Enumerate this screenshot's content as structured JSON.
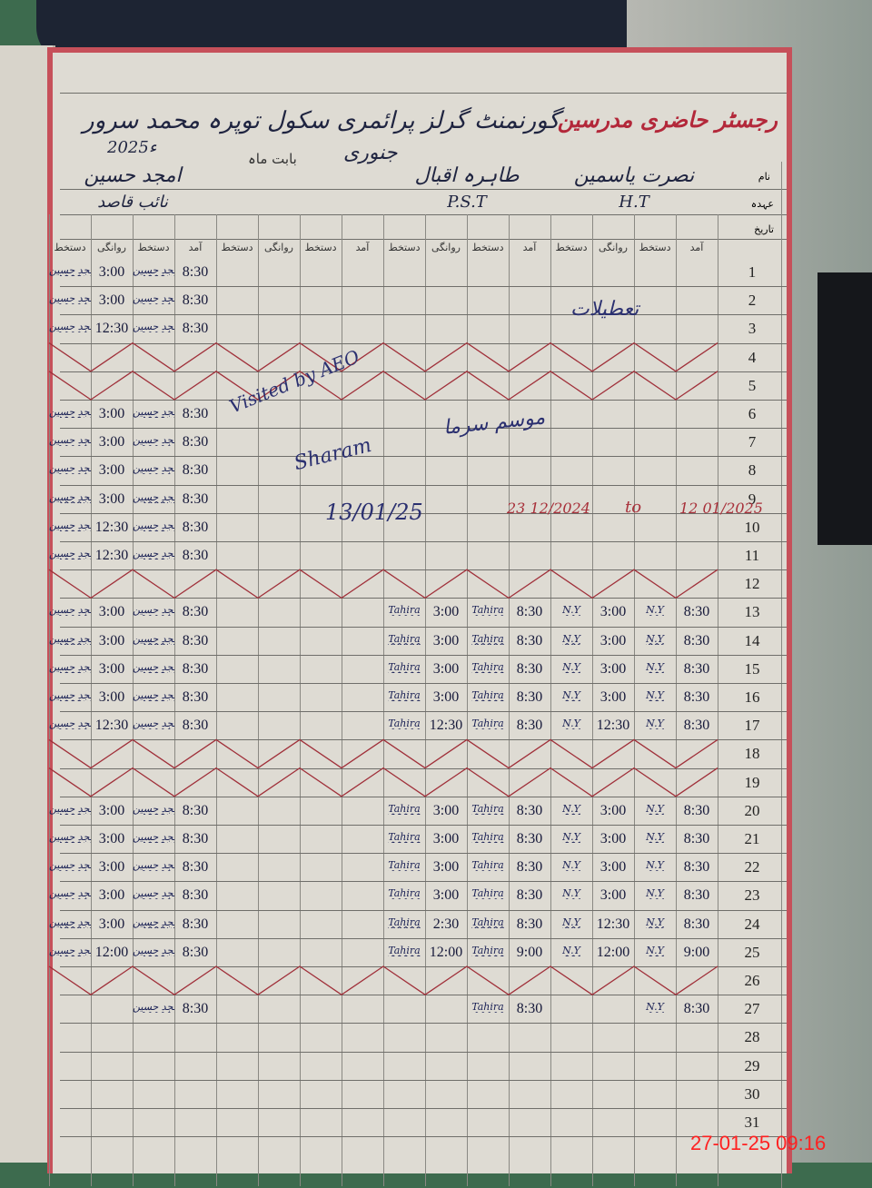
{
  "register": {
    "printed_title": "رجسٹر حاضری مدرسین",
    "school": "گورنمنٹ گرلز پرائمری سکول توپرہ محمد سرور",
    "month_label": "بابت ماہ",
    "month": "جنوری",
    "year": "2025ء",
    "row_labels": {
      "name": "نام",
      "designation": "عہدہ",
      "date": "تاریخ"
    },
    "column_headers": [
      "آمد",
      "دستخط",
      "روانگی",
      "دستخط",
      "آمد",
      "دستخط",
      "روانگی",
      "دستخط",
      "آمد",
      "دستخط",
      "روانگی",
      "دستخط",
      "آمد",
      "دستخط",
      "روانگی",
      "دستخط"
    ],
    "teachers": [
      {
        "name": "نصرت یاسمین",
        "designation": "H.T",
        "signature": "N.Y"
      },
      {
        "name": "طاہرہ اقبال",
        "designation": "P.S.T",
        "signature": "Tahira"
      },
      {
        "name": "",
        "designation": "",
        "signature": ""
      },
      {
        "name": "امجد حسین",
        "designation": "نائب قاصد",
        "signature": "امجد حسین"
      }
    ]
  },
  "rows": [
    {
      "date": "1",
      "t": [
        null,
        null,
        null,
        [
          "8:30",
          "3:00"
        ]
      ]
    },
    {
      "date": "2",
      "t": [
        null,
        null,
        null,
        [
          "8:30",
          "3:00"
        ]
      ]
    },
    {
      "date": "3",
      "t": [
        null,
        null,
        null,
        [
          "8:30",
          "12:30"
        ]
      ]
    },
    {
      "date": "4",
      "holiday": true
    },
    {
      "date": "5",
      "holiday": true
    },
    {
      "date": "6",
      "t": [
        null,
        null,
        null,
        [
          "8:30",
          "3:00"
        ]
      ]
    },
    {
      "date": "7",
      "t": [
        null,
        null,
        null,
        [
          "8:30",
          "3:00"
        ]
      ]
    },
    {
      "date": "8",
      "t": [
        null,
        null,
        null,
        [
          "8:30",
          "3:00"
        ]
      ]
    },
    {
      "date": "9",
      "t": [
        null,
        null,
        null,
        [
          "8:30",
          "3:00"
        ]
      ]
    },
    {
      "date": "10",
      "t": [
        null,
        null,
        null,
        [
          "8:30",
          "12:30"
        ]
      ]
    },
    {
      "date": "11",
      "t": [
        null,
        null,
        null,
        [
          "8:30",
          "12:30"
        ]
      ]
    },
    {
      "date": "12",
      "holiday": true
    },
    {
      "date": "13",
      "t": [
        [
          "8:30",
          "3:00"
        ],
        [
          "8:30",
          "3:00"
        ],
        null,
        [
          "8:30",
          "3:00"
        ]
      ]
    },
    {
      "date": "14",
      "t": [
        [
          "8:30",
          "3:00"
        ],
        [
          "8:30",
          "3:00"
        ],
        null,
        [
          "8:30",
          "3:00"
        ]
      ]
    },
    {
      "date": "15",
      "t": [
        [
          "8:30",
          "3:00"
        ],
        [
          "8:30",
          "3:00"
        ],
        null,
        [
          "8:30",
          "3:00"
        ]
      ]
    },
    {
      "date": "16",
      "t": [
        [
          "8:30",
          "3:00"
        ],
        [
          "8:30",
          "3:00"
        ],
        null,
        [
          "8:30",
          "3:00"
        ]
      ]
    },
    {
      "date": "17",
      "t": [
        [
          "8:30",
          "12:30"
        ],
        [
          "8:30",
          "12:30"
        ],
        null,
        [
          "8:30",
          "12:30"
        ]
      ]
    },
    {
      "date": "18",
      "holiday": true
    },
    {
      "date": "19",
      "holiday": true
    },
    {
      "date": "20",
      "t": [
        [
          "8:30",
          "3:00"
        ],
        [
          "8:30",
          "3:00"
        ],
        null,
        [
          "8:30",
          "3:00"
        ]
      ]
    },
    {
      "date": "21",
      "t": [
        [
          "8:30",
          "3:00"
        ],
        [
          "8:30",
          "3:00"
        ],
        null,
        [
          "8:30",
          "3:00"
        ]
      ]
    },
    {
      "date": "22",
      "t": [
        [
          "8:30",
          "3:00"
        ],
        [
          "8:30",
          "3:00"
        ],
        null,
        [
          "8:30",
          "3:00"
        ]
      ]
    },
    {
      "date": "23",
      "t": [
        [
          "8:30",
          "3:00"
        ],
        [
          "8:30",
          "3:00"
        ],
        null,
        [
          "8:30",
          "3:00"
        ]
      ]
    },
    {
      "date": "24",
      "t": [
        [
          "8:30",
          "12:30"
        ],
        [
          "8:30",
          "2:30"
        ],
        null,
        [
          "8:30",
          "3:00"
        ]
      ]
    },
    {
      "date": "25",
      "t": [
        [
          "9:00",
          "12:00"
        ],
        [
          "9:00",
          "12:00"
        ],
        null,
        [
          "8:30",
          "12:00"
        ]
      ]
    },
    {
      "date": "26",
      "holiday": true
    },
    {
      "date": "27",
      "t": [
        [
          "8:30",
          ""
        ],
        [
          "8:30",
          ""
        ],
        null,
        [
          "8:30",
          ""
        ]
      ]
    },
    {
      "date": "28"
    },
    {
      "date": "29"
    },
    {
      "date": "30"
    },
    {
      "date": "31"
    }
  ],
  "annotations": {
    "holidays": "تعطیلات",
    "winter": "موسم سرما",
    "visited": "Visited by AEO",
    "visitor_sign": "Sharam",
    "visit_date": "13/01/25",
    "range_from": "23 12/2024",
    "range_to": "to",
    "range_end": "12 01/2025"
  },
  "timestamp": "27-01-25 09:16",
  "colors": {
    "printed_red": "#b3283a",
    "ink_blue": "#1a2155",
    "timestamp": "#ff2020",
    "holiday_cross": "#a0303a"
  }
}
